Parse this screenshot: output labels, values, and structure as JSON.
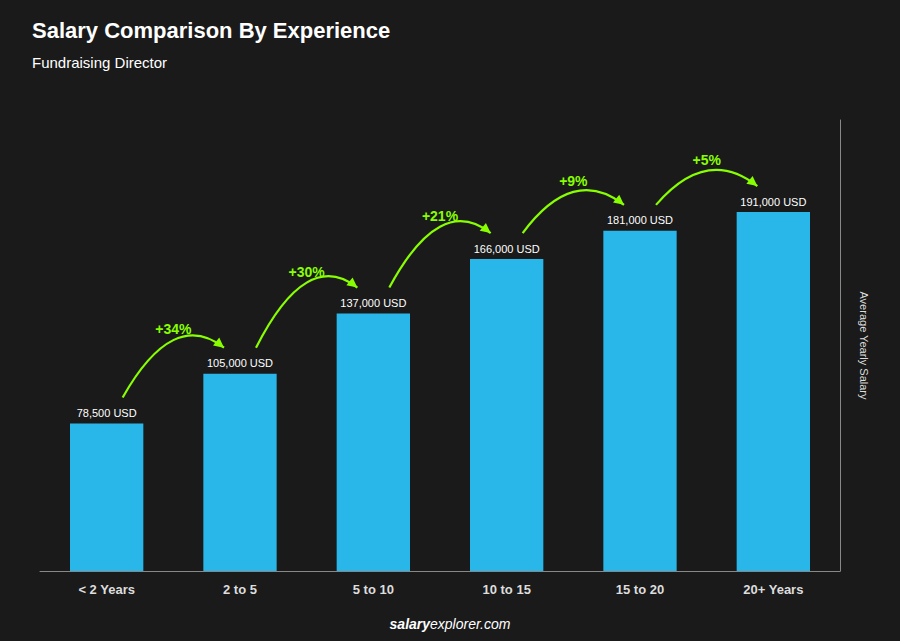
{
  "chart_data": {
    "type": "bar",
    "title": "Salary Comparison By Experience",
    "subtitle": "Fundraising Director",
    "ylabel": "Average Yearly Salary",
    "footer": [
      "salary",
      "explorer.com"
    ],
    "categories": [
      "< 2 Years",
      "2 to 5",
      "5 to 10",
      "10 to 15",
      "15 to 20",
      "20+ Years"
    ],
    "values": [
      78500,
      105000,
      137000,
      166000,
      181000,
      191000
    ],
    "value_labels": [
      "78,500 USD",
      "105,000 USD",
      "137,000 USD",
      "166,000 USD",
      "181,000 USD",
      "191,000 USD"
    ],
    "data_labels": true,
    "color": "#29b6e8",
    "ylim": [
      0,
      240000
    ],
    "tick_labels": "x",
    "grid": false,
    "annotations": [
      {
        "text": "+34%",
        "from": "< 2 Years",
        "to": "2 to 5",
        "color": "#88ff00"
      },
      {
        "text": "+30%",
        "from": "2 to 5",
        "to": "5 to 10",
        "color": "#88ff00"
      },
      {
        "text": "+21%",
        "from": "5 to 10",
        "to": "10 to 15",
        "color": "#88ff00"
      },
      {
        "text": "+9%",
        "from": "10 to 15",
        "to": "15 to 20",
        "color": "#88ff00"
      },
      {
        "text": "+5%",
        "from": "15 to 20",
        "to": "20+ Years",
        "color": "#88ff00"
      }
    ]
  }
}
